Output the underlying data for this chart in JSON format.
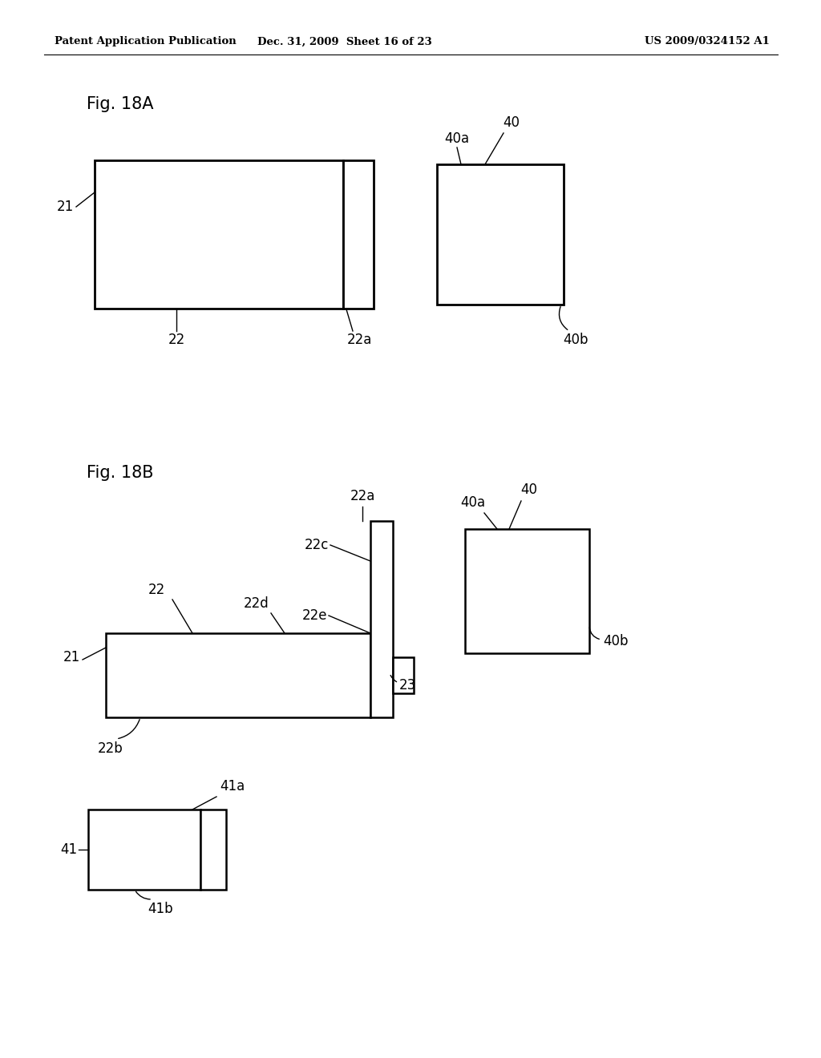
{
  "bg_color": "#ffffff",
  "header_left": "Patent Application Publication",
  "header_mid": "Dec. 31, 2009  Sheet 16 of 23",
  "header_right": "US 2009/0324152 A1",
  "fig_label_A": "Fig. 18A",
  "fig_label_B": "Fig. 18B"
}
